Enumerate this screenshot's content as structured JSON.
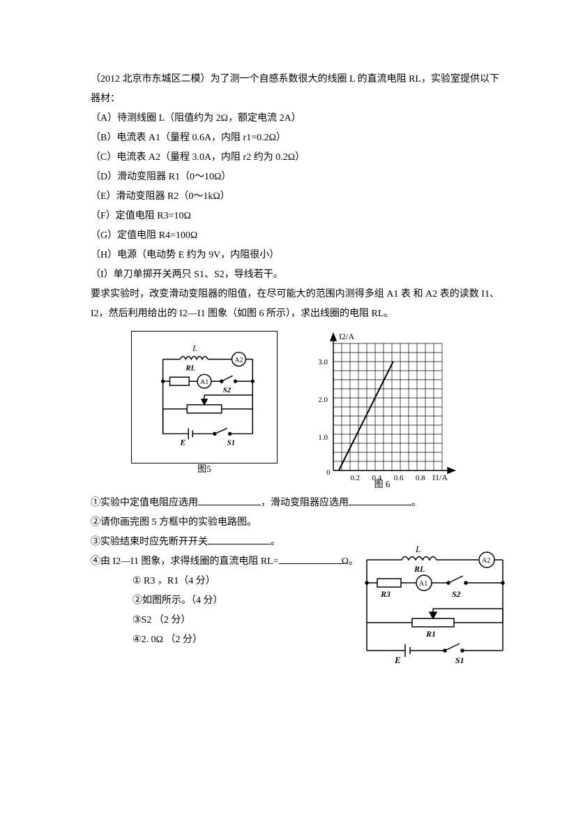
{
  "header": "（2012 北京市东城区二模）为了测一个自感系数很大的线圈 L 的直流电阻 RL，实验室提供以下器材：",
  "items": {
    "a": "（A）待测线圈 L（阻值约为 2Ω，额定电流 2A）",
    "b": "（B）电流表 A1（量程 0.6A，内阻 r1=0.2Ω）",
    "c": "（C）电流表 A2（量程 3.0A，内阻 r2 约为 0.2Ω）",
    "d": "（D）滑动变阻器 R1（0～10Ω）",
    "e": "（E）滑动变阻器 R2（0～1kΩ）",
    "f": "（F）定值电阻 R3=10Ω",
    "g": "（G）定值电阻 R4=100Ω",
    "h": "（H）电源（电动势 E 约为 9V，内阻很小）",
    "i": "（I）单刀单掷开关两只 S1、S2，导线若干。"
  },
  "requirement": "要求实验时，改变滑动变阻器的阻值，在尽可能大的范围内测得多组 A1 表 和 A2 表的读数 I1、I2，然后利用给出的 I2—I1 图象（如图 6 所示），求出线圈的电阻 RL。",
  "fig5": {
    "caption": "图5",
    "L": "L",
    "RL": "RL",
    "A2": "A2",
    "A1": "A1",
    "S2": "S2",
    "S1": "S1",
    "E": "E"
  },
  "fig6": {
    "caption": "图 6",
    "ylabel": "I2/A",
    "xlabel": "I1/A",
    "yticks": [
      "1.0",
      "2.0",
      "3.0"
    ],
    "xticks": [
      "0",
      "0.2",
      "0.4",
      "0.6",
      "0.8"
    ],
    "grid_size": 14,
    "grid_cols": 14,
    "grid_rows": 14,
    "grid_color": "#000000",
    "line_color": "#000000",
    "line_start": [
      0.05,
      0
    ],
    "line_end": [
      0.55,
      3.0
    ],
    "xmax": 1.0,
    "ymax": 3.5
  },
  "questions": {
    "q1a": "①实验中定值电阻应选用",
    "q1b": "，滑动变阻器应选用",
    "q1c": "。",
    "q2": "②请你画完图 5 方框中的实验电路图。",
    "q3a": "③实验结束时应先断开开关",
    "q3b": "。",
    "q4a": "④由 I2—I1 图象，求得线圈的直流电阻 RL=",
    "q4b": "Ω。"
  },
  "answers": {
    "a1": "① R3 ，R1（4 分）",
    "a2": "②如图所示。（4 分）",
    "a3": "③S2  （2 分）",
    "a4": "④2. 0Ω （2 分）"
  },
  "answer_circuit": {
    "L": "L",
    "RL": "RL",
    "A2": "A2",
    "A1": "A1",
    "R3": "R3",
    "R1": "R1",
    "S2": "S2",
    "S1": "S1",
    "E": "E"
  }
}
